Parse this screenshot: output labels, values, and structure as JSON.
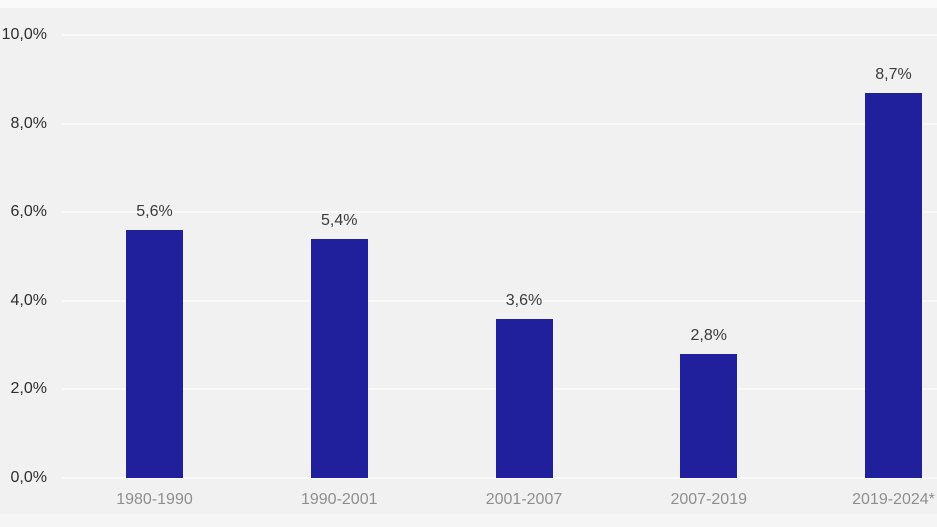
{
  "chart_data": {
    "type": "bar",
    "title": "",
    "xlabel": "",
    "ylabel": "",
    "categories": [
      "1980-1990",
      "1990-2001",
      "2001-2007",
      "2007-2019",
      "2019-2024*"
    ],
    "values": [
      5.6,
      5.4,
      3.6,
      2.8,
      8.7
    ],
    "value_labels": [
      "5,6%",
      "5,4%",
      "3,6%",
      "2,8%",
      "8,7%"
    ],
    "ylim": [
      0,
      10
    ],
    "y_tick_values": [
      0,
      2,
      4,
      6,
      8,
      10
    ],
    "y_tick_labels": [
      "0,0%",
      "2,0%",
      "4,0%",
      "6,0%",
      "8,0%",
      "10,0%"
    ],
    "grid": "horizontal",
    "legend": "none",
    "colors": {
      "bar": "#20209d",
      "background": "#f1f1f1",
      "gridline": "#fafafa",
      "y_tick_label": "#2d2d2d",
      "x_tick_label": "#8e8e8e",
      "value_label": "#3b3b3b"
    }
  }
}
